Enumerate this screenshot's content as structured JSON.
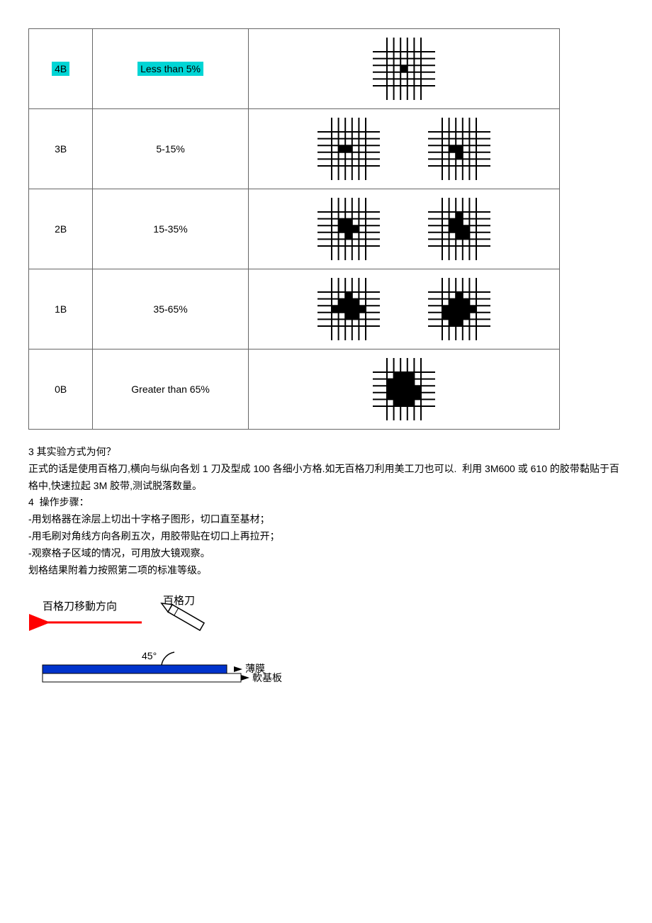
{
  "table": {
    "rows": [
      {
        "grade": "4B",
        "range": "Less than 5%",
        "highlight": true,
        "patterns": [
          {
            "damage": 0.02
          }
        ]
      },
      {
        "grade": "3B",
        "range": "5-15%",
        "highlight": false,
        "patterns": [
          {
            "damage": 0.08
          },
          {
            "damage": 0.13
          }
        ]
      },
      {
        "grade": "2B",
        "range": "15-35%",
        "highlight": false,
        "patterns": [
          {
            "damage": 0.22
          },
          {
            "damage": 0.32
          }
        ]
      },
      {
        "grade": "1B",
        "range": "35-65%",
        "highlight": false,
        "patterns": [
          {
            "damage": 0.45
          },
          {
            "damage": 0.6
          }
        ]
      },
      {
        "grade": "0B",
        "range": "Greater than 65%",
        "highlight": false,
        "patterns": [
          {
            "damage": 0.8
          }
        ]
      }
    ]
  },
  "text": {
    "q3": "3 其实验方式为何？",
    "p1": "正式的话是使用百格刀,横向与纵向各划 1 刀及型成 100 各细小方格.如无百格刀利用美工刀也可以.  利用 3M600 或 610 的胶带黏贴于百格中,快速拉起 3M 胶带,测试脱落数量。",
    "q4": "4  操作步骤：",
    "s1": "-用划格器在涂层上切出十字格子图形，切口直至基材；",
    "s2": "-用毛刷对角线方向各刷五次，用胶带贴在切口上再拉开；",
    "s3": "-观察格子区域的情况，可用放大镜观察。",
    "s4": "划格结果附着力按照第二项的标准等级。"
  },
  "diagram": {
    "knife_label": "百格刀",
    "move_label": "百格刀移動方向",
    "angle_label": "45°",
    "film_label": "薄膜",
    "substrate_label": "軟基板",
    "colors": {
      "arrow": "#ff0000",
      "film": "#0033cc",
      "text": "#000000",
      "outline": "#000000"
    }
  },
  "style": {
    "highlight_bg": "#00d5d5",
    "font_size_table": 14,
    "font_size_text": 14,
    "grid_stroke": "#000000",
    "grid_stroke_width": 2
  }
}
